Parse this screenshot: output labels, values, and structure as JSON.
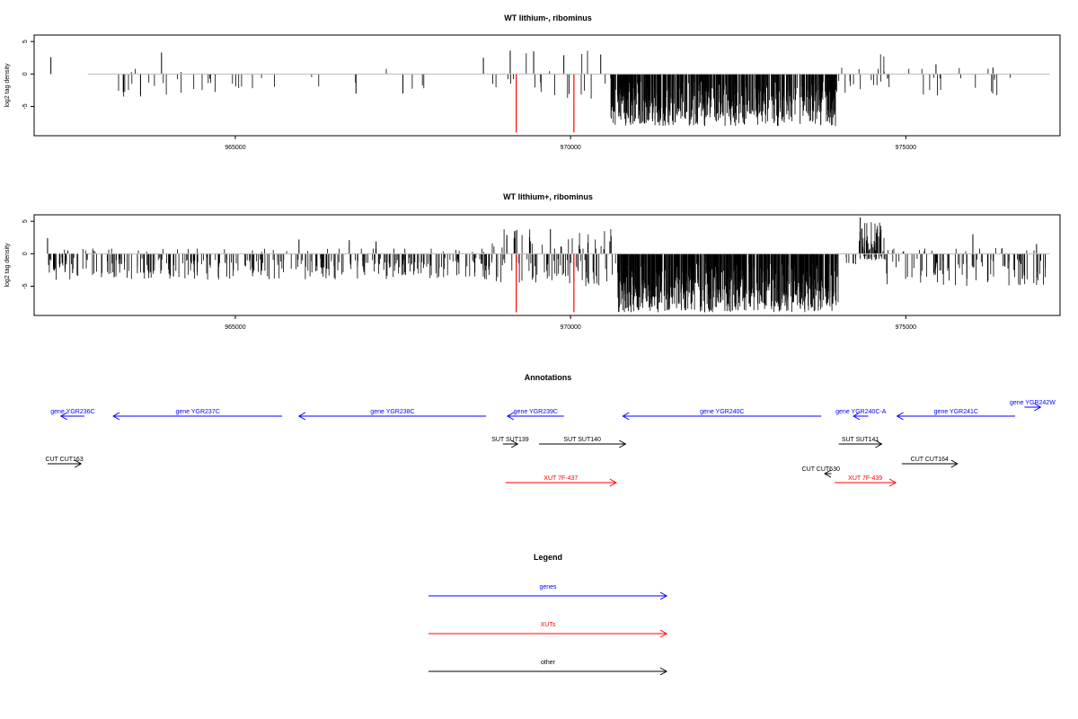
{
  "chart_data": [
    {
      "type": "bar",
      "title": "WT lithium-, ribominus",
      "xlabel": "",
      "ylabel": "log2 tag density",
      "xlim": [
        962000,
        977300
      ],
      "ylim": [
        -9.5,
        6
      ],
      "xticks": [
        965000,
        970000,
        975000
      ],
      "yticks": [
        5,
        0,
        -5
      ],
      "xtick_labels": [
        "965000",
        "970000",
        "975000"
      ],
      "ytick_labels": [
        "5",
        "0",
        "-5"
      ],
      "baseline_color": "#bbbbbb",
      "bar_color": "#000000",
      "highlight_color": "#ff0000",
      "highlights": [
        {
          "x": 969190,
          "y": -9.0
        },
        {
          "x": 970050,
          "y": -9.0
        }
      ],
      "regions": [
        {
          "x0": 962250,
          "x1": 963200,
          "density": 0.0,
          "lo": 0,
          "hi": 0
        },
        {
          "x0": 963200,
          "x1": 965300,
          "density": 0.03,
          "lo": -3.5,
          "hi": 0.5
        },
        {
          "x0": 965300,
          "x1": 968900,
          "density": 0.007,
          "lo": -3,
          "hi": 0.2
        },
        {
          "x0": 968900,
          "x1": 970600,
          "density": 0.025,
          "lo": -4,
          "hi": 3.8
        },
        {
          "x0": 970600,
          "x1": 973950,
          "density": 0.45,
          "lo": -8,
          "hi": 0
        },
        {
          "x0": 973950,
          "x1": 974400,
          "density": 0.05,
          "lo": -3,
          "hi": 1
        },
        {
          "x0": 974400,
          "x1": 974900,
          "density": 0.05,
          "lo": -2,
          "hi": 3.5
        },
        {
          "x0": 974900,
          "x1": 976700,
          "density": 0.022,
          "lo": -3.5,
          "hi": 1
        }
      ],
      "spikes": [
        {
          "x": 962250,
          "y": 2.6
        },
        {
          "x": 963900,
          "y": 3.3
        },
        {
          "x": 966800,
          "y": -3
        },
        {
          "x": 967500,
          "y": -3
        },
        {
          "x": 968700,
          "y": 2.5
        },
        {
          "x": 969100,
          "y": 3.6
        },
        {
          "x": 969450,
          "y": 3.5
        },
        {
          "x": 969900,
          "y": 2.9
        },
        {
          "x": 970450,
          "y": 3.0
        },
        {
          "x": 972000,
          "y": -8
        },
        {
          "x": 975450,
          "y": 1.5
        },
        {
          "x": 976300,
          "y": 1.0
        }
      ]
    },
    {
      "type": "bar",
      "title": "WT lithium+, ribominus",
      "xlabel": "",
      "ylabel": "log2 tag density",
      "xlim": [
        962000,
        977300
      ],
      "ylim": [
        -9.5,
        6
      ],
      "xticks": [
        965000,
        970000,
        975000
      ],
      "yticks": [
        5,
        0,
        -5
      ],
      "xtick_labels": [
        "965000",
        "970000",
        "975000"
      ],
      "ytick_labels": [
        "5",
        "0",
        "-5"
      ],
      "baseline_color": "#bbbbbb",
      "bar_color": "#000000",
      "highlight_color": "#ff0000",
      "highlights": [
        {
          "x": 969190,
          "y": -9.0
        },
        {
          "x": 970050,
          "y": -9.0
        }
      ],
      "regions": [
        {
          "x0": 962200,
          "x1": 968800,
          "density": 0.12,
          "lo": -4,
          "hi": 0.8
        },
        {
          "x0": 968800,
          "x1": 970700,
          "density": 0.12,
          "lo": -5,
          "hi": 3.8
        },
        {
          "x0": 970700,
          "x1": 974000,
          "density": 0.55,
          "lo": -9,
          "hi": 0
        },
        {
          "x0": 974000,
          "x1": 974300,
          "density": 0.05,
          "lo": -2,
          "hi": 1
        },
        {
          "x0": 974300,
          "x1": 974700,
          "density": 0.35,
          "lo": -1,
          "hi": 5
        },
        {
          "x0": 974700,
          "x1": 977100,
          "density": 0.1,
          "lo": -5,
          "hi": 1
        }
      ],
      "spikes": [
        {
          "x": 962200,
          "y": 2.4
        },
        {
          "x": 965950,
          "y": 2.2
        },
        {
          "x": 966700,
          "y": 2.1
        },
        {
          "x": 967100,
          "y": 1.9
        },
        {
          "x": 969050,
          "y": 2.9
        },
        {
          "x": 969700,
          "y": 3.8
        },
        {
          "x": 974320,
          "y": 5.6
        },
        {
          "x": 976000,
          "y": 3.0
        },
        {
          "x": 976950,
          "y": 1.5
        },
        {
          "x": 972000,
          "y": -9
        }
      ]
    }
  ],
  "annotations": {
    "title": "Annotations",
    "genes": [
      {
        "label": "gene YGR236C",
        "x0": 962750,
        "x1": 962400,
        "dir": "left",
        "row": "genes"
      },
      {
        "label": "gene YGR237C",
        "x0": 965700,
        "x1": 963180,
        "dir": "left",
        "row": "genes"
      },
      {
        "label": "gene YGR238C",
        "x0": 968740,
        "x1": 965950,
        "dir": "left",
        "row": "genes"
      },
      {
        "label": "gene YGR239C",
        "x0": 969900,
        "x1": 969060,
        "dir": "left",
        "row": "genes"
      },
      {
        "label": "gene YGR240C",
        "x0": 973740,
        "x1": 970780,
        "dir": "left",
        "row": "genes"
      },
      {
        "label": "gene YGR240C-A",
        "x0": 974440,
        "x1": 974220,
        "dir": "left",
        "row": "genes"
      },
      {
        "label": "gene YGR241C",
        "x0": 976630,
        "x1": 974870,
        "dir": "left",
        "row": "genes"
      },
      {
        "label": "gene YGR242W",
        "x0": 976770,
        "x1": 977010,
        "dir": "right",
        "row": "genes-upper"
      }
    ],
    "suts": [
      {
        "label": "SUT SUT139",
        "x0": 968990,
        "x1": 969210,
        "dir": "right"
      },
      {
        "label": "SUT SUT140",
        "x0": 969530,
        "x1": 970820,
        "dir": "right"
      },
      {
        "label": "SUT SUT141",
        "x0": 974000,
        "x1": 974640,
        "dir": "right"
      }
    ],
    "cuts": [
      {
        "label": "CUT CUT163",
        "x0": 962200,
        "x1": 962700,
        "dir": "right",
        "label_dx": 0
      },
      {
        "label": "CUT CUT164",
        "x0": 974940,
        "x1": 975770,
        "dir": "right",
        "label_dx": 0
      },
      {
        "label": "CUT CUT630",
        "x0": 973890,
        "x1": 973790,
        "dir": "left",
        "label_dx": -8
      }
    ],
    "xuts": [
      {
        "label": "XUT 7F-437",
        "x0": 969030,
        "x1": 970680,
        "dir": "right"
      },
      {
        "label": "XUT 7F-439",
        "x0": 973940,
        "x1": 974850,
        "dir": "right"
      }
    ]
  },
  "legend": {
    "title": "Legend",
    "entries": [
      {
        "label": "genes",
        "color": "#0000ff"
      },
      {
        "label": "XUTs",
        "color": "#ff0000"
      },
      {
        "label": "other",
        "color": "#000000"
      }
    ]
  },
  "colors": {
    "gene": "#0000ff",
    "xut": "#ff0000",
    "other": "#000000"
  }
}
